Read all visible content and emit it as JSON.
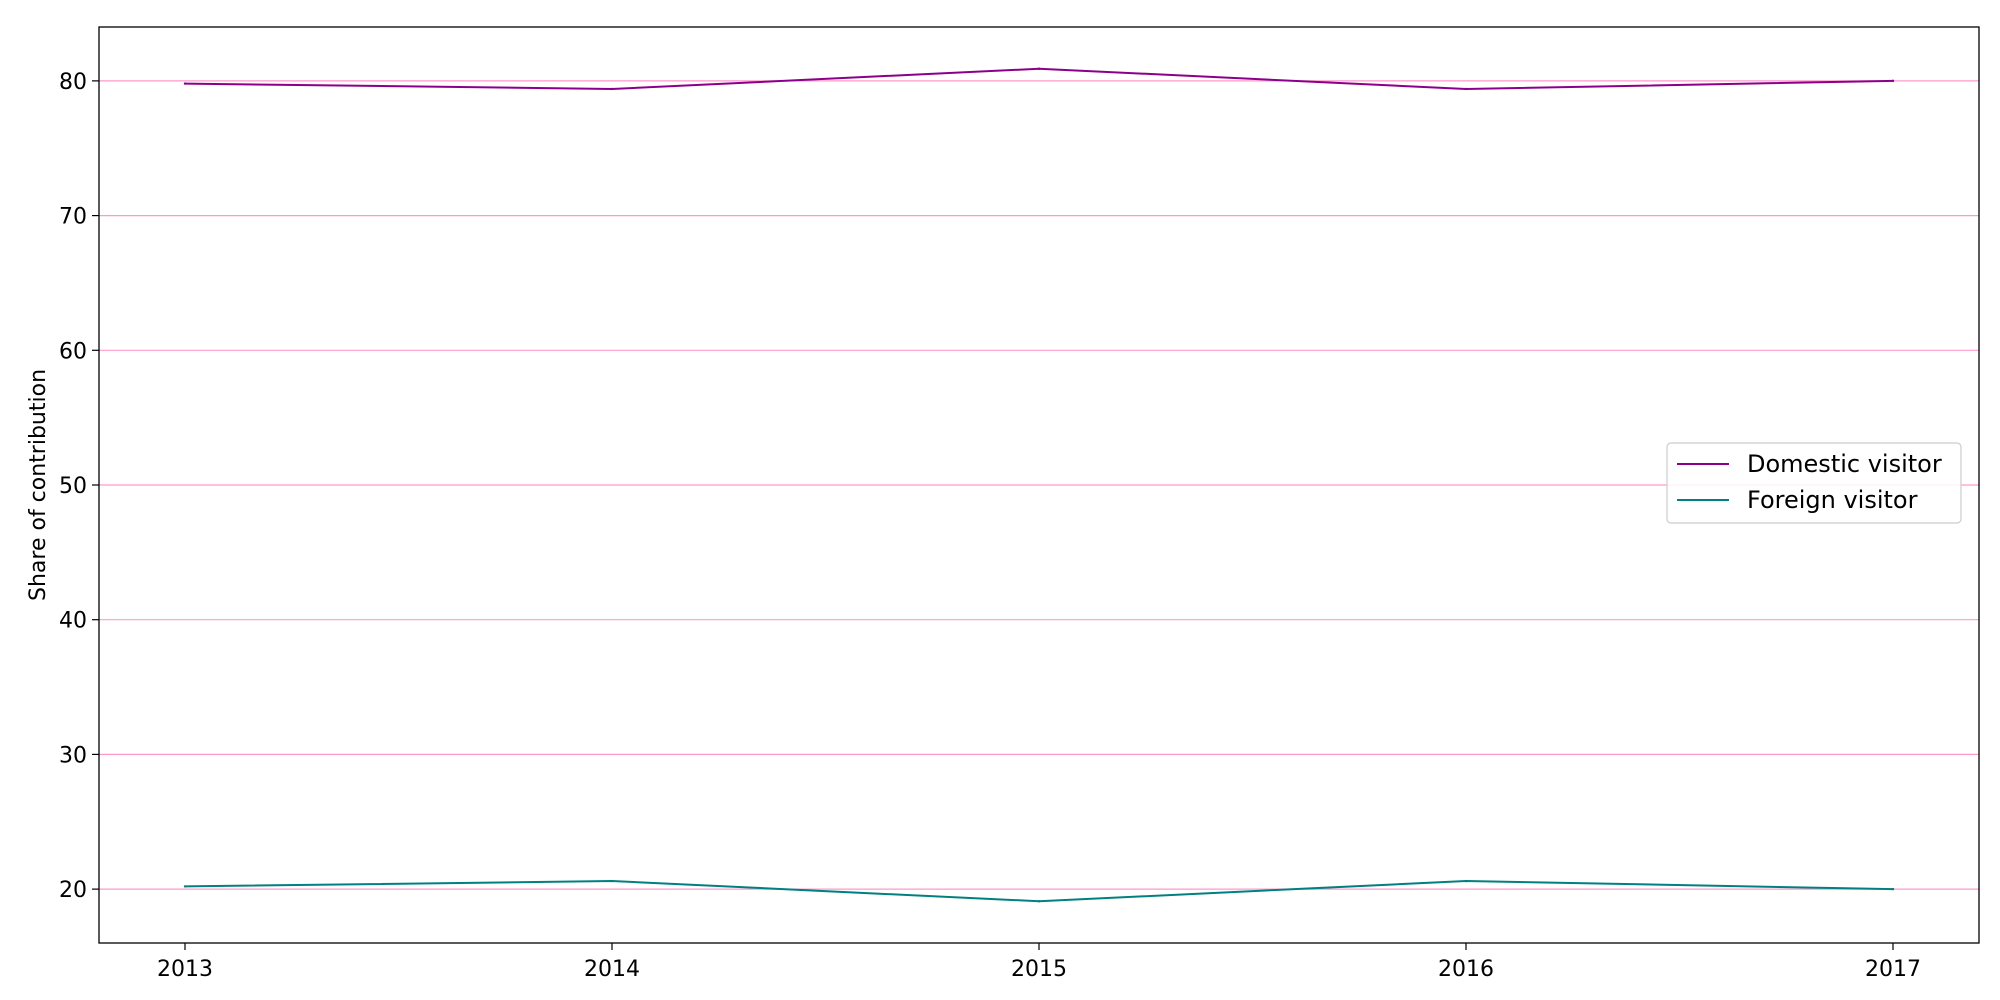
{
  "chart_data": {
    "type": "line",
    "title": "",
    "xlabel": "",
    "ylabel": "Share of contribution",
    "x": [
      "2013",
      "2014",
      "2015",
      "2016",
      "2017"
    ],
    "ylim": [
      16,
      84
    ],
    "yticks": [
      20,
      30,
      40,
      50,
      60,
      70,
      80
    ],
    "grid": "horizontal",
    "grid_color": "#ff99cc",
    "legend_position": "center-right",
    "series": [
      {
        "name": "Domestic visitor",
        "color": "#8b008b",
        "values": [
          79.8,
          79.4,
          80.9,
          79.4,
          80.0
        ]
      },
      {
        "name": "Foreign visitor",
        "color": "#008080",
        "values": [
          20.2,
          20.6,
          19.1,
          20.6,
          20.0
        ]
      }
    ]
  }
}
